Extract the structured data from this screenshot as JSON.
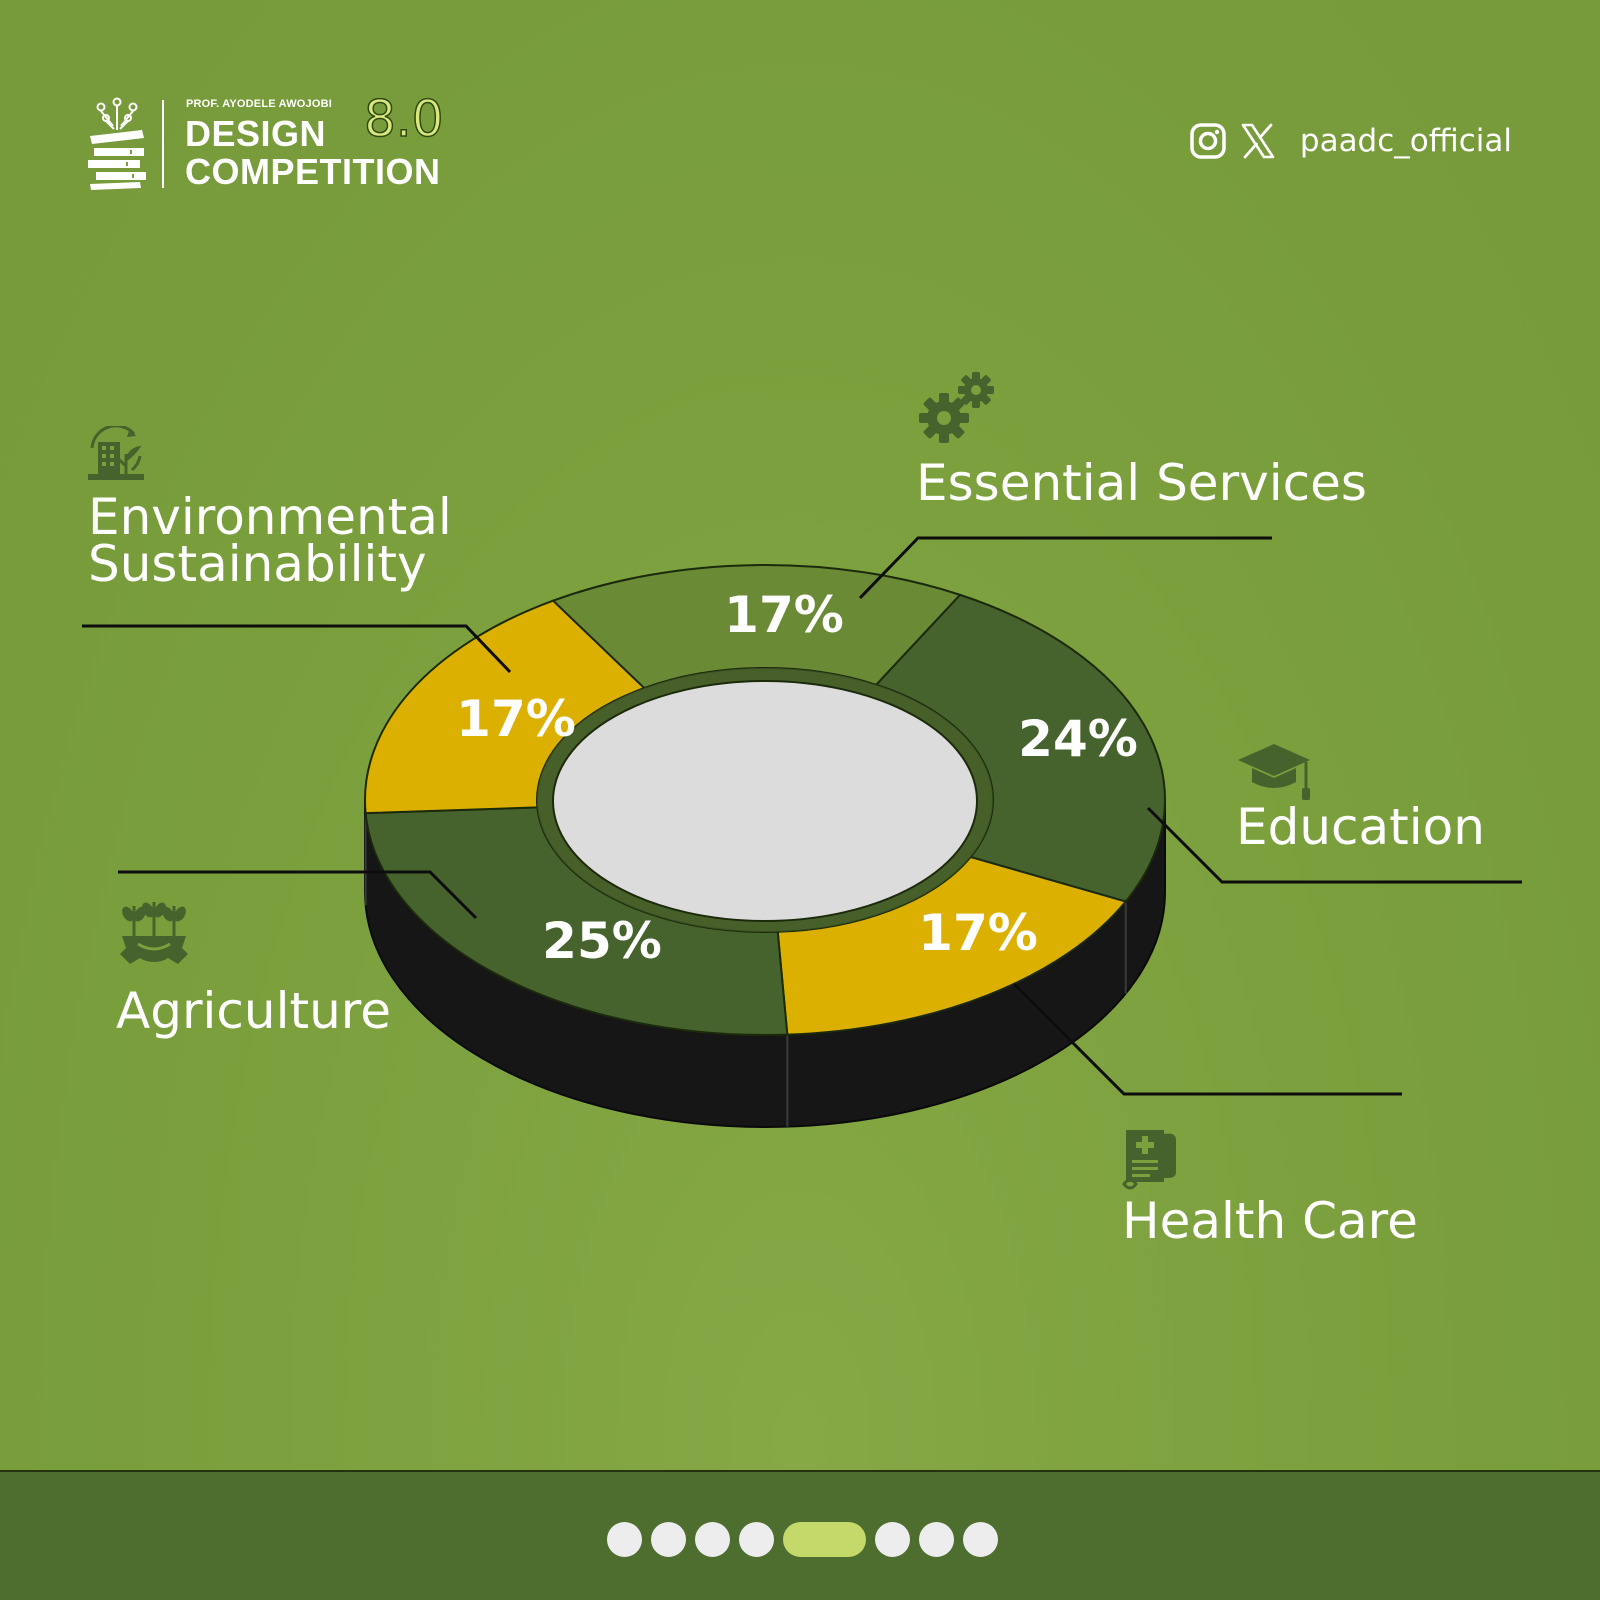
{
  "brand": {
    "subtitle": "PROF. AYODELE AWOJOBI",
    "line1": "DESIGN",
    "line2": "COMPETITION",
    "version": "8.0"
  },
  "social": {
    "icons": [
      "instagram-icon",
      "x-icon"
    ],
    "handle": "paadc_official"
  },
  "chart_data": {
    "type": "pie",
    "style": "3d-donut",
    "categories": [
      "Essential Services",
      "Education",
      "Health Care",
      "Agriculture",
      "Environmental Sustainability"
    ],
    "values": [
      17,
      24,
      17,
      25,
      17
    ],
    "labels": [
      "17%",
      "24%",
      "17%",
      "25%",
      "17%"
    ],
    "colors": [
      "#6b8a35",
      "#46622d",
      "#dcb000",
      "#46622d",
      "#dcb000"
    ],
    "side_color": "#161616",
    "hole_color": "#dcdcdc",
    "legend": "callout-labels"
  },
  "category_icons": {
    "Essential Services": "gears-icon",
    "Education": "graduation-cap-icon",
    "Health Care": "medical-record-icon",
    "Agriculture": "plant-gear-icon",
    "Environmental Sustainability": "eco-building-icon"
  },
  "carousel": {
    "count": 8,
    "active_index": 4
  },
  "colors": {
    "background": "#7ba03e",
    "footer": "#4e6e30",
    "accent": "#c4d96a"
  }
}
